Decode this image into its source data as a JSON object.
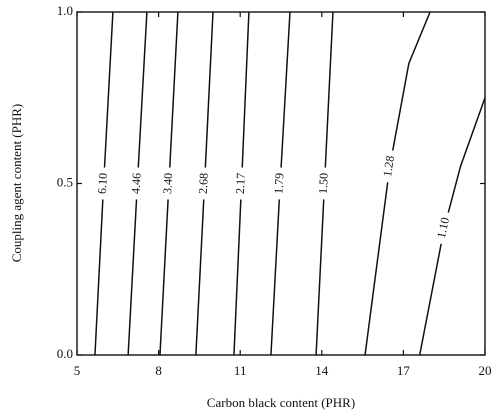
{
  "chart_data": {
    "type": "contour",
    "x_label": "Carbon black content (PHR)",
    "y_label": "Coupling agent content (PHR)",
    "xlim": [
      5,
      20
    ],
    "ylim": [
      0,
      1
    ],
    "xticks": [
      5,
      8,
      11,
      14,
      17,
      20
    ],
    "yticks": [
      {
        "value": 0,
        "label": "0.0"
      },
      {
        "value": 0.5,
        "label": "0.5"
      },
      {
        "value": 1,
        "label": "1.0"
      }
    ],
    "series": [
      {
        "name": "6.10",
        "x": [
          5.66,
          5.98,
          6.32
        ],
        "y": [
          0,
          0.5,
          1
        ]
      },
      {
        "name": "4.46",
        "x": [
          6.88,
          7.22,
          7.57
        ],
        "y": [
          0,
          0.5,
          1
        ]
      },
      {
        "name": "3.40",
        "x": [
          8.05,
          8.38,
          8.71
        ],
        "y": [
          0,
          0.5,
          1
        ]
      },
      {
        "name": "2.68",
        "x": [
          9.37,
          9.69,
          10.0
        ],
        "y": [
          0,
          0.5,
          1
        ]
      },
      {
        "name": "2.17",
        "x": [
          10.77,
          11.05,
          11.32
        ],
        "y": [
          0,
          0.5,
          1
        ]
      },
      {
        "name": "1.79",
        "x": [
          12.13,
          12.47,
          12.83
        ],
        "y": [
          0,
          0.5,
          1
        ]
      },
      {
        "name": "1.50",
        "x": [
          13.79,
          14.1,
          14.41
        ],
        "y": [
          0,
          0.5,
          1
        ]
      },
      {
        "name": "1.28",
        "x": [
          15.59,
          16.5,
          17.2,
          17.98
        ],
        "y": [
          0,
          0.55,
          0.85,
          1
        ]
      },
      {
        "name": "1.10",
        "x": [
          17.6,
          18.5,
          19.1,
          20
        ],
        "y": [
          0,
          0.37,
          0.55,
          0.75
        ]
      }
    ]
  }
}
